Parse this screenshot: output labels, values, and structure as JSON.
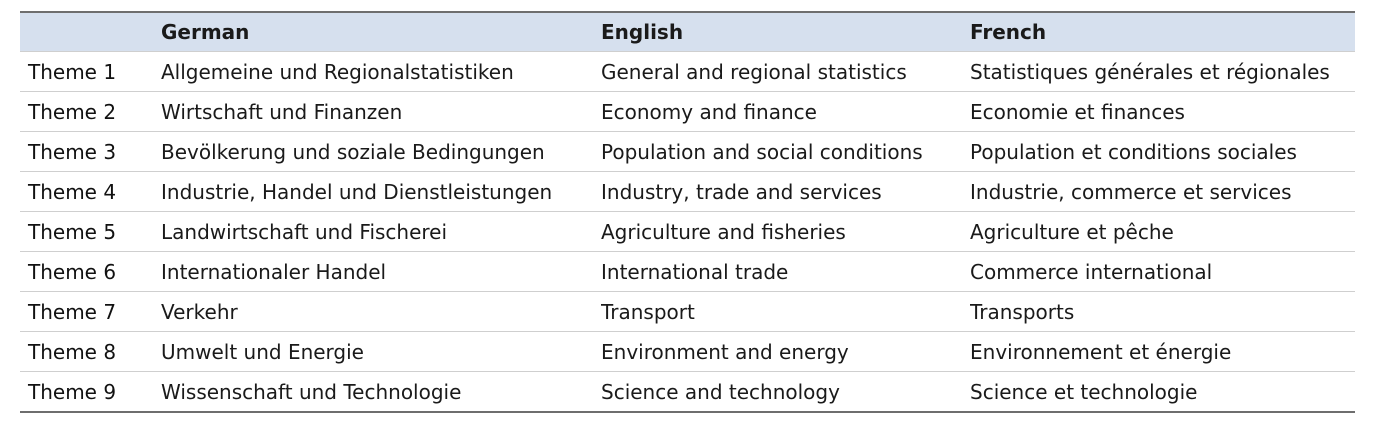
{
  "table": {
    "headers": [
      "",
      "German",
      "English",
      "French"
    ],
    "rows": [
      [
        "Theme 1",
        "Allgemeine und Regionalstatistiken",
        "General and regional statistics",
        "Statistiques générales et régionales"
      ],
      [
        "Theme 2",
        "Wirtschaft und Finanzen",
        "Economy and finance",
        "Economie et finances"
      ],
      [
        "Theme 3",
        "Bevölkerung und soziale Bedingungen",
        "Population and social conditions",
        "Population et conditions sociales"
      ],
      [
        "Theme 4",
        "Industrie, Handel und Dienstleistungen",
        "Industry, trade and services",
        "Industrie, commerce et services"
      ],
      [
        "Theme 5",
        "Landwirtschaft und Fischerei",
        "Agriculture and fisheries",
        "Agriculture et pêche"
      ],
      [
        "Theme 6",
        "Internationaler Handel",
        "International trade",
        "Commerce international"
      ],
      [
        "Theme 7",
        "Verkehr",
        "Transport",
        "Transports"
      ],
      [
        "Theme 8",
        "Umwelt und Energie",
        "Environment and energy",
        "Environnement et énergie"
      ],
      [
        "Theme 9",
        "Wissenschaft und Technologie",
        "Science and technology",
        "Science et technologie"
      ]
    ]
  },
  "colors": {
    "header_background": "#d6e0ee",
    "rule_strong": "#6e6e6e",
    "rule_light": "#cfcfcf"
  }
}
